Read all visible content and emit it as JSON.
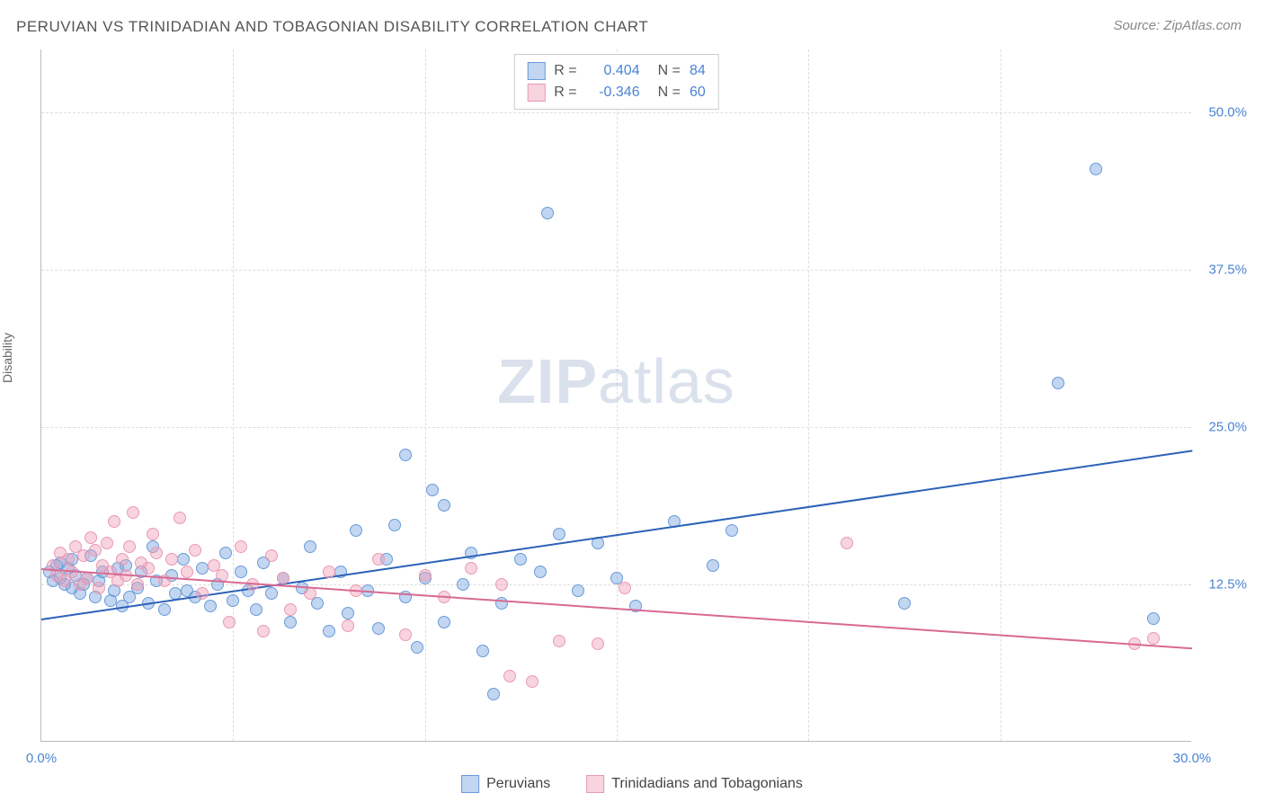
{
  "title": "PERUVIAN VS TRINIDADIAN AND TOBAGONIAN DISABILITY CORRELATION CHART",
  "source": "Source: ZipAtlas.com",
  "y_axis_label": "Disability",
  "watermark": {
    "part1": "ZIP",
    "part2": "atlas"
  },
  "chart": {
    "type": "scatter",
    "background_color": "#ffffff",
    "grid_color": "#dddddd",
    "axis_color": "#bbbbbb",
    "xlim": [
      0,
      30
    ],
    "ylim": [
      0,
      55
    ],
    "x_ticks": [
      {
        "value": 0,
        "label": "0.0%",
        "color": "#4a84d4"
      },
      {
        "value": 30,
        "label": "30.0%",
        "color": "#4a84d4"
      }
    ],
    "y_ticks": [
      {
        "value": 12.5,
        "label": "12.5%",
        "color": "#4a84d4"
      },
      {
        "value": 25.0,
        "label": "25.0%",
        "color": "#4a84d4"
      },
      {
        "value": 37.5,
        "label": "37.5%",
        "color": "#4a84d4"
      },
      {
        "value": 50.0,
        "label": "50.0%",
        "color": "#4a84d4"
      }
    ],
    "x_gridlines": [
      5,
      10,
      15,
      20,
      25
    ],
    "series": [
      {
        "name": "Peruvians",
        "fill_color": "rgba(120,165,225,0.45)",
        "stroke_color": "#6a9bd8",
        "marker_size": 14,
        "trend": {
          "x1": 0,
          "y1": 9.8,
          "x2": 30,
          "y2": 23.2,
          "color": "#2c62b8",
          "width": 2
        },
        "R": "0.404",
        "N": "84",
        "points": [
          [
            0.2,
            13.5
          ],
          [
            0.3,
            12.8
          ],
          [
            0.4,
            14.0
          ],
          [
            0.5,
            13.0
          ],
          [
            0.5,
            14.2
          ],
          [
            0.6,
            12.5
          ],
          [
            0.7,
            13.8
          ],
          [
            0.8,
            12.2
          ],
          [
            0.8,
            14.5
          ],
          [
            0.9,
            13.2
          ],
          [
            1.0,
            11.8
          ],
          [
            1.1,
            12.5
          ],
          [
            1.2,
            13.0
          ],
          [
            1.3,
            14.8
          ],
          [
            1.4,
            11.5
          ],
          [
            1.5,
            12.8
          ],
          [
            1.6,
            13.5
          ],
          [
            1.8,
            11.2
          ],
          [
            1.9,
            12.0
          ],
          [
            2.0,
            13.8
          ],
          [
            2.1,
            10.8
          ],
          [
            2.2,
            14.0
          ],
          [
            2.3,
            11.5
          ],
          [
            2.5,
            12.2
          ],
          [
            2.6,
            13.5
          ],
          [
            2.8,
            11.0
          ],
          [
            2.9,
            15.5
          ],
          [
            3.0,
            12.8
          ],
          [
            3.2,
            10.5
          ],
          [
            3.4,
            13.2
          ],
          [
            3.5,
            11.8
          ],
          [
            3.7,
            14.5
          ],
          [
            3.8,
            12.0
          ],
          [
            4.0,
            11.5
          ],
          [
            4.2,
            13.8
          ],
          [
            4.4,
            10.8
          ],
          [
            4.6,
            12.5
          ],
          [
            4.8,
            15.0
          ],
          [
            5.0,
            11.2
          ],
          [
            5.2,
            13.5
          ],
          [
            5.4,
            12.0
          ],
          [
            5.6,
            10.5
          ],
          [
            5.8,
            14.2
          ],
          [
            6.0,
            11.8
          ],
          [
            6.3,
            13.0
          ],
          [
            6.5,
            9.5
          ],
          [
            6.8,
            12.2
          ],
          [
            7.0,
            15.5
          ],
          [
            7.2,
            11.0
          ],
          [
            7.5,
            8.8
          ],
          [
            7.8,
            13.5
          ],
          [
            8.0,
            10.2
          ],
          [
            8.2,
            16.8
          ],
          [
            8.5,
            12.0
          ],
          [
            8.8,
            9.0
          ],
          [
            9.0,
            14.5
          ],
          [
            9.2,
            17.2
          ],
          [
            9.5,
            11.5
          ],
          [
            9.5,
            22.8
          ],
          [
            9.8,
            7.5
          ],
          [
            10.0,
            13.0
          ],
          [
            10.2,
            20.0
          ],
          [
            10.5,
            18.8
          ],
          [
            10.5,
            9.5
          ],
          [
            11.0,
            12.5
          ],
          [
            11.2,
            15.0
          ],
          [
            11.5,
            7.2
          ],
          [
            11.8,
            3.8
          ],
          [
            12.0,
            11.0
          ],
          [
            12.5,
            14.5
          ],
          [
            13.0,
            13.5
          ],
          [
            13.2,
            42.0
          ],
          [
            13.5,
            16.5
          ],
          [
            14.0,
            12.0
          ],
          [
            14.5,
            15.8
          ],
          [
            15.0,
            13.0
          ],
          [
            15.5,
            10.8
          ],
          [
            16.5,
            17.5
          ],
          [
            17.5,
            14.0
          ],
          [
            18.0,
            16.8
          ],
          [
            22.5,
            11.0
          ],
          [
            26.5,
            28.5
          ],
          [
            27.5,
            45.5
          ],
          [
            29.0,
            9.8
          ]
        ]
      },
      {
        "name": "Trinidadians and Tobagonians",
        "fill_color": "rgba(240,160,185,0.45)",
        "stroke_color": "#e89ab5",
        "marker_size": 14,
        "trend": {
          "x1": 0,
          "y1": 13.8,
          "x2": 30,
          "y2": 7.5,
          "color": "#d86a92",
          "width": 2
        },
        "R": "-0.346",
        "N": "60",
        "points": [
          [
            0.3,
            14.0
          ],
          [
            0.4,
            13.2
          ],
          [
            0.5,
            15.0
          ],
          [
            0.6,
            12.8
          ],
          [
            0.7,
            14.5
          ],
          [
            0.8,
            13.5
          ],
          [
            0.9,
            15.5
          ],
          [
            1.0,
            12.5
          ],
          [
            1.1,
            14.8
          ],
          [
            1.2,
            13.0
          ],
          [
            1.3,
            16.2
          ],
          [
            1.4,
            15.2
          ],
          [
            1.5,
            12.2
          ],
          [
            1.6,
            14.0
          ],
          [
            1.7,
            15.8
          ],
          [
            1.8,
            13.5
          ],
          [
            1.9,
            17.5
          ],
          [
            2.0,
            12.8
          ],
          [
            2.1,
            14.5
          ],
          [
            2.2,
            13.2
          ],
          [
            2.3,
            15.5
          ],
          [
            2.4,
            18.2
          ],
          [
            2.5,
            12.5
          ],
          [
            2.6,
            14.2
          ],
          [
            2.8,
            13.8
          ],
          [
            2.9,
            16.5
          ],
          [
            3.0,
            15.0
          ],
          [
            3.2,
            12.8
          ],
          [
            3.4,
            14.5
          ],
          [
            3.6,
            17.8
          ],
          [
            3.8,
            13.5
          ],
          [
            4.0,
            15.2
          ],
          [
            4.2,
            11.8
          ],
          [
            4.5,
            14.0
          ],
          [
            4.7,
            13.2
          ],
          [
            4.9,
            9.5
          ],
          [
            5.2,
            15.5
          ],
          [
            5.5,
            12.5
          ],
          [
            5.8,
            8.8
          ],
          [
            6.0,
            14.8
          ],
          [
            6.3,
            13.0
          ],
          [
            6.5,
            10.5
          ],
          [
            7.0,
            11.8
          ],
          [
            7.5,
            13.5
          ],
          [
            8.0,
            9.2
          ],
          [
            8.2,
            12.0
          ],
          [
            8.8,
            14.5
          ],
          [
            9.5,
            8.5
          ],
          [
            10.0,
            13.2
          ],
          [
            10.5,
            11.5
          ],
          [
            11.2,
            13.8
          ],
          [
            12.0,
            12.5
          ],
          [
            12.2,
            5.2
          ],
          [
            12.8,
            4.8
          ],
          [
            13.5,
            8.0
          ],
          [
            14.5,
            7.8
          ],
          [
            15.2,
            12.2
          ],
          [
            21.0,
            15.8
          ],
          [
            28.5,
            7.8
          ],
          [
            29.0,
            8.2
          ]
        ]
      }
    ]
  },
  "legend_top": {
    "tick_color": "#4a84d4",
    "text_color": "#555555"
  }
}
